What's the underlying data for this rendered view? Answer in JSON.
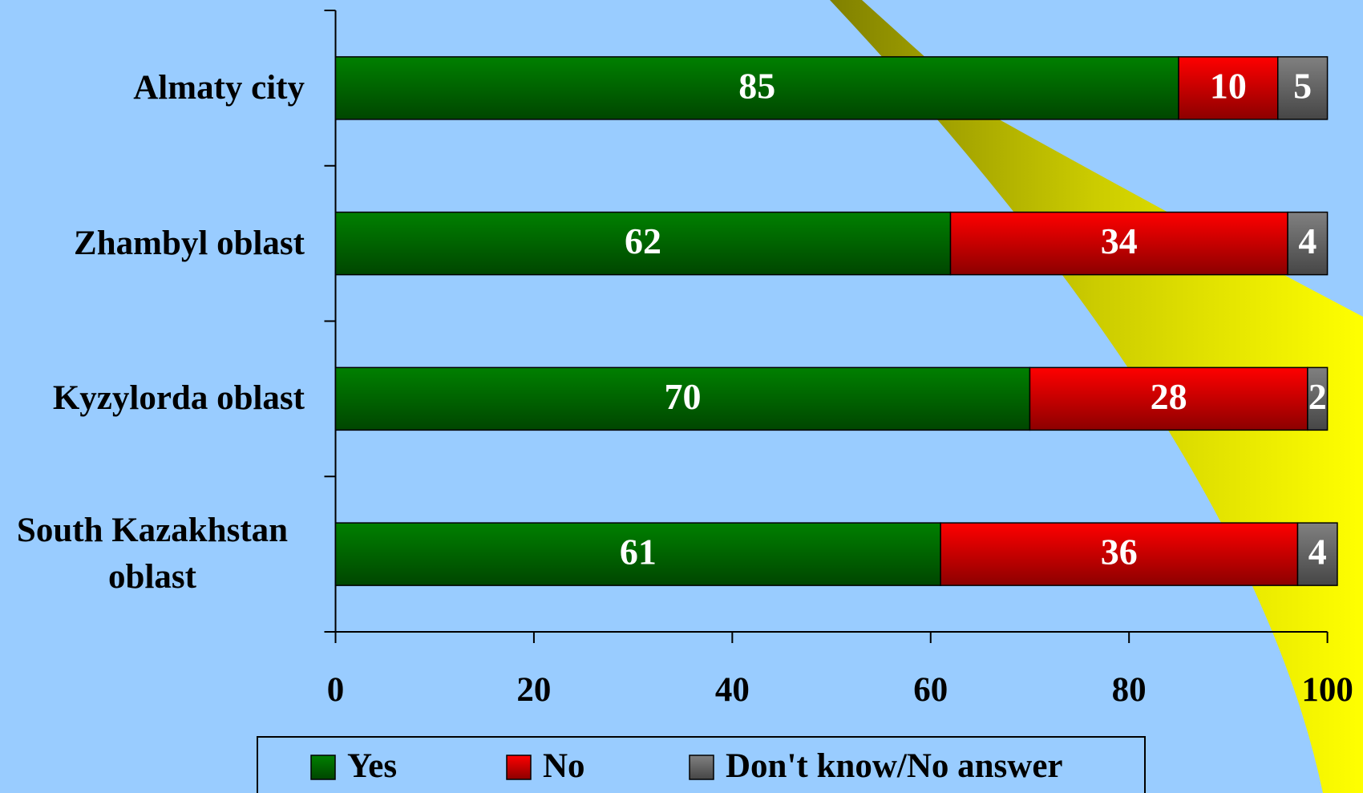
{
  "chart_data": {
    "type": "stacked-barh",
    "categories": [
      "Almaty city",
      "Zhambyl oblast",
      "Kyzylorda oblast",
      "South Kazakhstan oblast"
    ],
    "series": [
      {
        "name": "Yes",
        "color": "#008000",
        "values": [
          85,
          62,
          70,
          61
        ]
      },
      {
        "name": "No",
        "color": "#ff0000",
        "values": [
          10,
          34,
          28,
          36
        ]
      },
      {
        "name": "Don't know/No answer",
        "color": "#808080",
        "values": [
          5,
          4,
          2,
          4
        ]
      }
    ],
    "xlim": [
      0,
      100
    ],
    "xticks": [
      0,
      20,
      40,
      60,
      80,
      100
    ]
  }
}
